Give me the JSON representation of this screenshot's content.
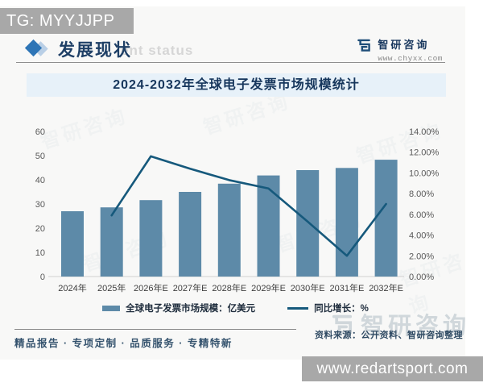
{
  "overlay": {
    "tg_label": "TG: MYYJJPP",
    "site_bar": "www.redartsport.com"
  },
  "header": {
    "section_title": "发展现状",
    "section_subtitle_ghost": "ent status",
    "brand": {
      "name": "智研咨询",
      "url": "www.chyxx.com"
    }
  },
  "chart_title": "2024-2032年全球电子发票市场规模统计",
  "chart_data": {
    "type": "bar",
    "subtype": "bar+line combo, dual axis",
    "title": "2024-2032年全球电子发票市场规模统计",
    "categories": [
      "2024年",
      "2025年",
      "2026年E",
      "2027年E",
      "2028年E",
      "2029年E",
      "2030年E",
      "2031年E",
      "2032年E"
    ],
    "series": [
      {
        "name": "全球电子发票市场规模：亿美元",
        "type": "bar",
        "axis": "left",
        "color": "#5d8aa8",
        "values": [
          27.0,
          28.6,
          31.6,
          35.0,
          38.4,
          41.8,
          44.0,
          44.9,
          48.3
        ]
      },
      {
        "name": "同比增长：%",
        "type": "line",
        "axis": "right",
        "color": "#16597c",
        "values": [
          null,
          5.9,
          11.6,
          10.4,
          9.3,
          8.5,
          5.3,
          2.0,
          7.0
        ]
      }
    ],
    "left_axis": {
      "min": 0,
      "max": 60,
      "ticks": [
        "0",
        "10",
        "20",
        "30",
        "40",
        "50",
        "60"
      ]
    },
    "right_axis": {
      "min": 0,
      "max": 14,
      "ticks": [
        "0.00%",
        "2.00%",
        "4.00%",
        "6.00%",
        "8.00%",
        "10.00%",
        "12.00%",
        "14.00%"
      ]
    },
    "grid": false,
    "legend_position": "bottom"
  },
  "footer": {
    "tagline": "精品报告 · 专项定制 · 品质服务 · 专精特新",
    "source": "资料来源：公开资料、智研咨询整理",
    "watermark_text": "智研咨询"
  },
  "colors": {
    "bar": "#5d8aa8",
    "line": "#16597c",
    "title_band_bg": "#e7f1f9",
    "accent_blue": "#2e75b6",
    "brand_navy": "#17365d",
    "gray_label_bg": "#a8a8a8",
    "axis_text": "#595959"
  }
}
